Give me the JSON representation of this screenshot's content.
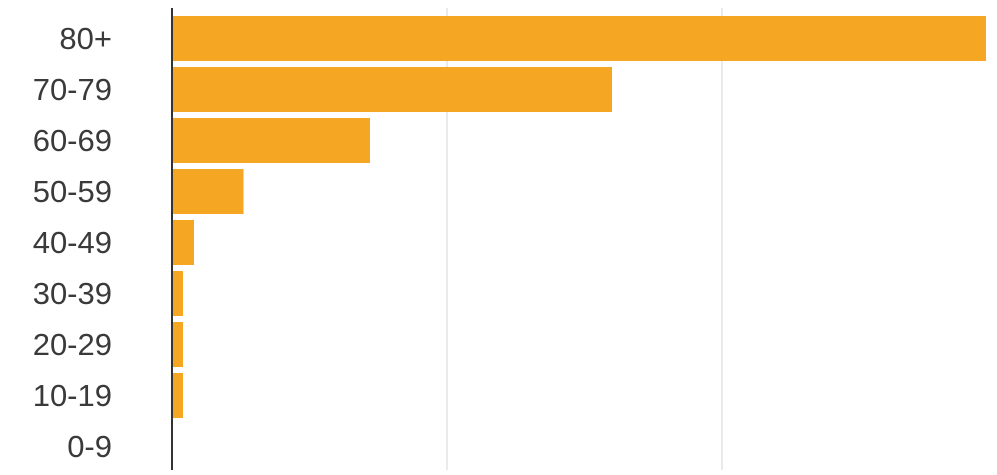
{
  "chart_data": {
    "type": "bar",
    "orientation": "horizontal",
    "categories": [
      "80+",
      "70-79",
      "60-69",
      "50-59",
      "40-49",
      "30-39",
      "20-29",
      "10-19",
      "0-9"
    ],
    "values": [
      14.8,
      8.0,
      3.6,
      1.3,
      0.4,
      0.2,
      0.2,
      0.2,
      0
    ],
    "xlim": [
      0,
      15
    ],
    "gridlines_x": [
      5,
      10,
      15
    ],
    "grid": true,
    "bar_color": "#F5A623",
    "axis_color": "#333333",
    "grid_color": "#dddddd"
  }
}
